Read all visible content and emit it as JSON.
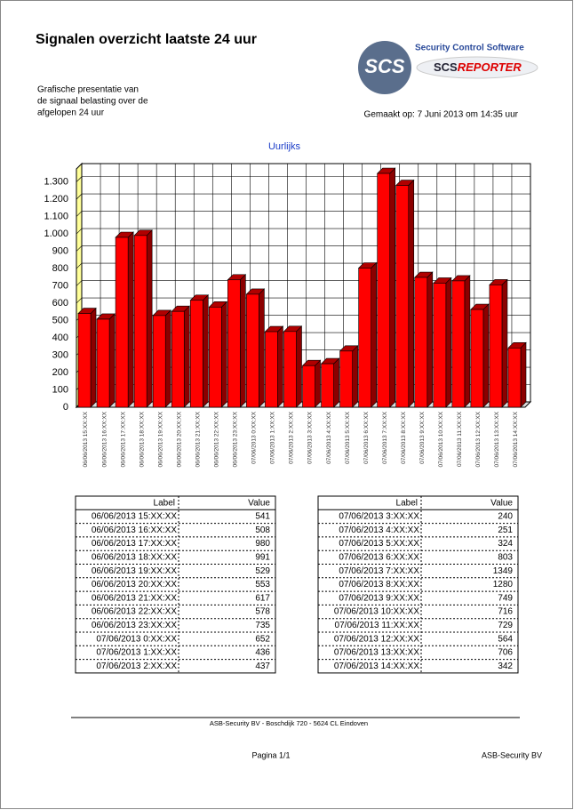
{
  "header": {
    "title": "Signalen overzicht laatste 24 uur",
    "description": [
      "Grafische presentatie van",
      "de signaal belasting over de",
      "afgelopen 24 uur"
    ],
    "created": "Gemaakt op:  7 Juni 2013 om 14:35 uur",
    "logo_text": "SCS",
    "brand": "Security Control Software",
    "product_prefix": "SCS",
    "product": "REPORTER"
  },
  "chart_data": {
    "type": "bar",
    "title": "Uurlijks",
    "color": "#ff0000",
    "grid": true,
    "categories": [
      "06/06/2013 15:XX:XX",
      "06/06/2013 16:XX:XX",
      "06/06/2013 17:XX:XX",
      "06/06/2013 18:XX:XX",
      "06/06/2013 19:XX:XX",
      "06/06/2013 20:XX:XX",
      "06/06/2013 21:XX:XX",
      "06/06/2013 22:XX:XX",
      "06/06/2013 23:XX:XX",
      "07/06/2013 0:XX:XX",
      "07/06/2013 1:XX:XX",
      "07/06/2013 2:XX:XX",
      "07/06/2013 3:XX:XX",
      "07/06/2013 4:XX:XX",
      "07/06/2013 5:XX:XX",
      "07/06/2013 6:XX:XX",
      "07/06/2013 7:XX:XX",
      "07/06/2013 8:XX:XX",
      "07/06/2013 9:XX:XX",
      "07/06/2013 10:XX:XX",
      "07/06/2013 11:XX:XX",
      "07/06/2013 12:XX:XX",
      "07/06/2013 13:XX:XX",
      "07/06/2013 14:XX:XX"
    ],
    "values": [
      541,
      508,
      980,
      991,
      529,
      553,
      617,
      578,
      735,
      652,
      436,
      437,
      240,
      251,
      324,
      803,
      1349,
      1280,
      749,
      716,
      729,
      564,
      706,
      342
    ],
    "ylim": [
      0,
      1375
    ],
    "yticks": [
      0,
      100,
      200,
      300,
      400,
      500,
      600,
      700,
      800,
      900,
      {
        "value": 1000,
        "label": "1.000"
      },
      {
        "value": 1100,
        "label": "1.100"
      },
      {
        "value": 1200,
        "label": "1.200"
      },
      {
        "value": 1300,
        "label": "1.300"
      }
    ]
  },
  "table": {
    "columns": [
      "Label",
      "Value"
    ]
  },
  "footer": {
    "address": "ASB-Security BV -  Boschdijk 720 -  5624 CL Eindoven",
    "page": "Pagina 1/1",
    "company": "ASB-Security BV"
  }
}
